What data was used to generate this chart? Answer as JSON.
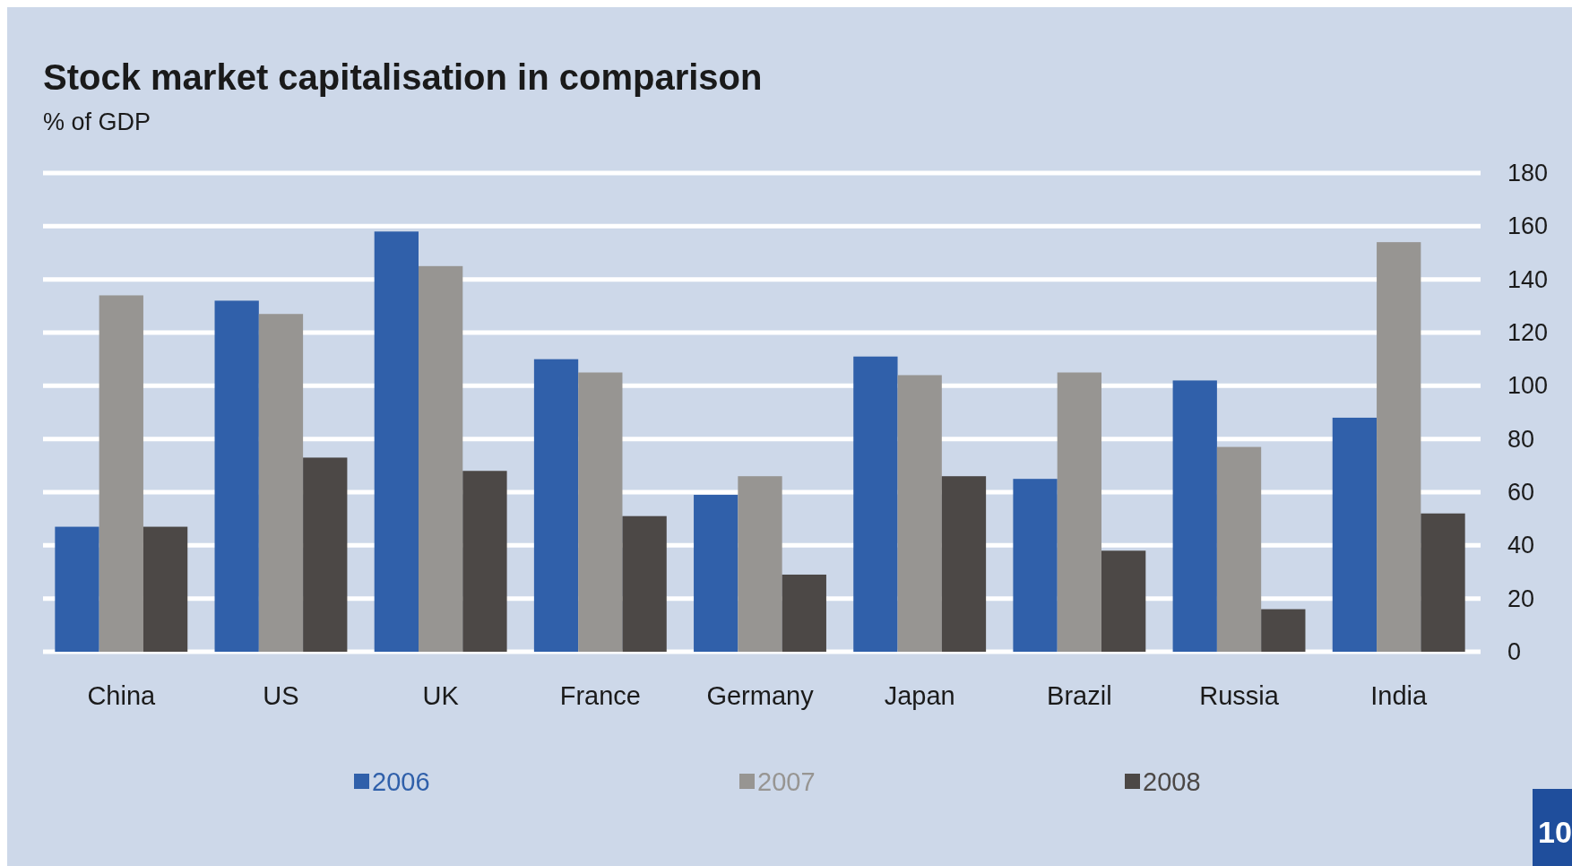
{
  "chart_data": {
    "type": "bar",
    "title": "Stock market capitalisation in comparison",
    "subtitle": "% of GDP",
    "categories": [
      "China",
      "US",
      "UK",
      "France",
      "Germany",
      "Japan",
      "Brazil",
      "Russia",
      "India"
    ],
    "series": [
      {
        "name": "2006",
        "color": "#3060aa",
        "values": [
          47,
          132,
          158,
          110,
          59,
          111,
          65,
          102,
          88
        ]
      },
      {
        "name": "2007",
        "color": "#979592",
        "values": [
          134,
          127,
          145,
          105,
          66,
          104,
          105,
          77,
          154
        ]
      },
      {
        "name": "2008",
        "color": "#4c4846",
        "values": [
          47,
          73,
          68,
          51,
          29,
          66,
          38,
          16,
          52
        ]
      }
    ],
    "ylim": [
      0,
      180
    ],
    "yticks": [
      0,
      20,
      40,
      60,
      80,
      100,
      120,
      140,
      160,
      180
    ],
    "grid": "y",
    "legend": "bottom",
    "annotations": [
      "10"
    ]
  }
}
